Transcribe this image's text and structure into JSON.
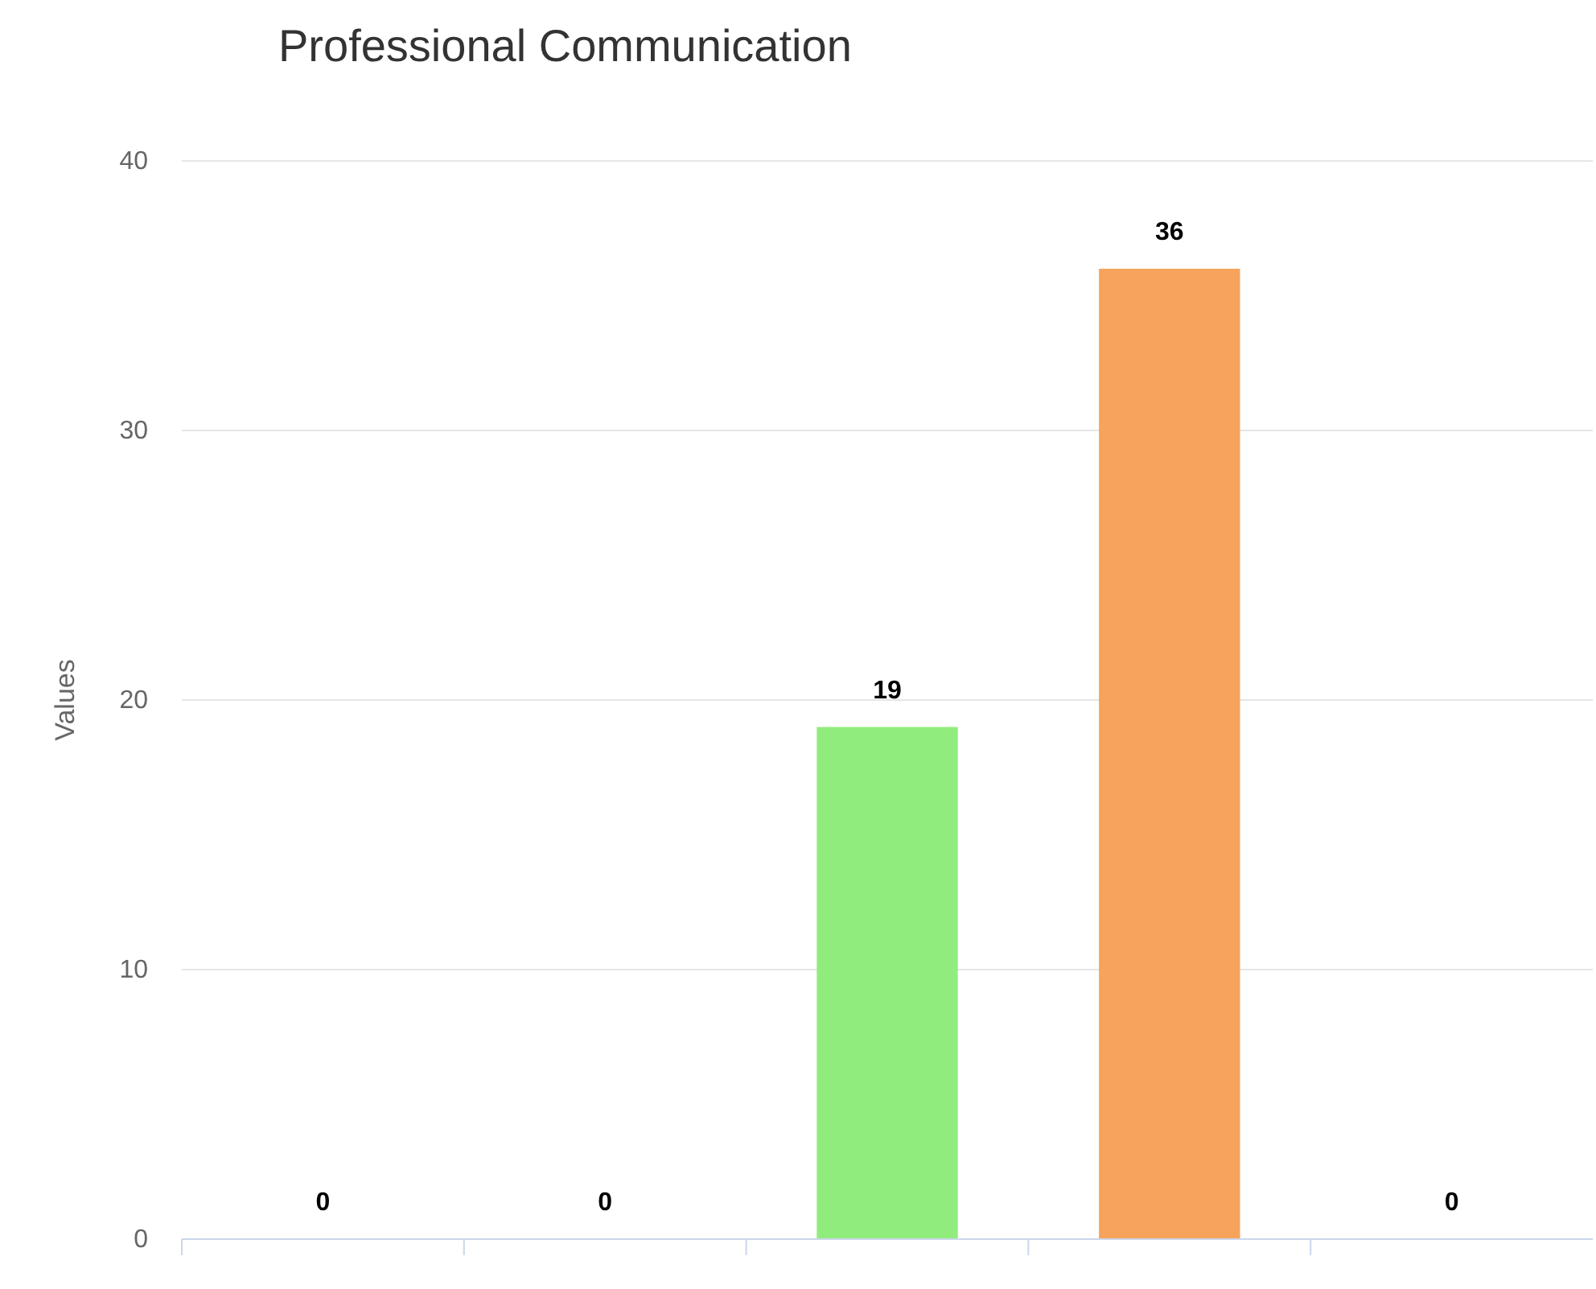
{
  "chart_data": {
    "type": "bar",
    "title": "Professional Communication",
    "ylabel": "Values",
    "categories": [
      null,
      null,
      null,
      null,
      null
    ],
    "values": [
      0,
      0,
      19,
      36,
      0
    ],
    "colors": [
      "#7cb5ec",
      "#434348",
      "#90ed7d",
      "#f7a35c",
      "#8085e9"
    ],
    "ylim": [
      0,
      40
    ],
    "yticks": [
      0,
      10,
      20,
      30,
      40
    ],
    "grid": "y",
    "data_labels": true
  }
}
